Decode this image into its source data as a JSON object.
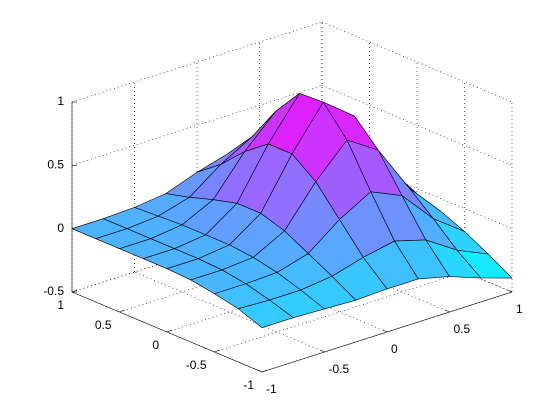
{
  "chart_data": {
    "type": "surface",
    "x": [
      -1,
      -0.75,
      -0.5,
      -0.25,
      0,
      0.25,
      0.5,
      0.75,
      1
    ],
    "y": [
      -1,
      -0.75,
      -0.5,
      -0.25,
      0,
      0.25,
      0.5,
      0.75,
      1
    ],
    "z": [
      [
        -0.15,
        -0.15,
        -0.16,
        -0.17,
        -0.16,
        -0.16,
        -0.22,
        -0.31,
        -0.39
      ],
      [
        -0.08,
        -0.09,
        -0.09,
        -0.06,
        0.01,
        0.06,
        -0.01,
        -0.17,
        -0.28
      ],
      [
        -0.04,
        -0.04,
        -0.03,
        0.04,
        0.23,
        0.37,
        0.26,
        0.0,
        -0.18
      ],
      [
        -0.01,
        -0.01,
        0.01,
        0.14,
        0.45,
        0.7,
        0.54,
        0.16,
        -0.1
      ],
      [
        0.0,
        0.0,
        0.03,
        0.2,
        0.59,
        0.92,
        0.73,
        0.26,
        -0.04
      ],
      [
        0.0,
        0.0,
        0.03,
        0.2,
        0.59,
        0.91,
        0.73,
        0.28,
        -0.01
      ],
      [
        0.0,
        0.0,
        0.03,
        0.15,
        0.45,
        0.69,
        0.56,
        0.22,
        0.0
      ],
      [
        0.0,
        0.0,
        0.02,
        0.09,
        0.27,
        0.41,
        0.33,
        0.13,
        0.01
      ],
      [
        0.0,
        0.0,
        0.01,
        0.04,
        0.13,
        0.2,
        0.16,
        0.07,
        0.02
      ]
    ],
    "xlim": [
      -1,
      1
    ],
    "ylim": [
      -1,
      1
    ],
    "zlim": [
      -0.5,
      1
    ],
    "xticks": [
      -1,
      -0.5,
      0,
      0.5,
      1
    ],
    "yticks": [
      -1,
      -0.5,
      0,
      0.5,
      1
    ],
    "zticks": [
      -0.5,
      0,
      0.5,
      1
    ],
    "colormap": [
      "#00ffff",
      "#ff00ff"
    ],
    "edge_color": "#000000",
    "grid": true
  }
}
